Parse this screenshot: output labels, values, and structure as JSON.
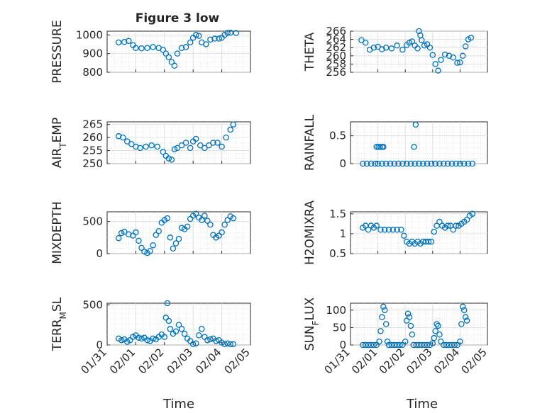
{
  "figure": {
    "title": "Figure 3 low",
    "xlabel": "Time",
    "x_ticks": [
      "01/31",
      "02/01",
      "02/02",
      "02/03",
      "02/04",
      "02/05"
    ],
    "marker_color": "#0072bd"
  },
  "chart_data": [
    {
      "type": "scatter",
      "ylabel": "PRESSURE",
      "ylim": [
        800,
        1020
      ],
      "yticks": [
        800,
        900,
        1000
      ],
      "ytick_labels": [
        "800",
        "900",
        "1000"
      ],
      "xlim": [
        0,
        5
      ],
      "grid": true,
      "x": [
        0.4,
        0.6,
        0.75,
        0.9,
        1.0,
        1.2,
        1.4,
        1.6,
        1.8,
        1.95,
        2.05,
        2.15,
        2.25,
        2.35,
        2.45,
        2.6,
        2.75,
        2.9,
        3.0,
        3.1,
        3.2,
        3.3,
        3.45,
        3.6,
        3.75,
        3.9,
        4.0,
        4.1,
        4.2,
        4.3,
        4.5
      ],
      "y": [
        960,
        962,
        968,
        945,
        930,
        928,
        930,
        935,
        930,
        920,
        900,
        880,
        855,
        835,
        900,
        930,
        935,
        960,
        985,
        1000,
        995,
        960,
        950,
        975,
        980,
        980,
        985,
        1000,
        1010,
        1012,
        1010
      ]
    },
    {
      "type": "scatter",
      "ylabel": "THETA",
      "ylim": [
        256,
        266
      ],
      "yticks": [
        256,
        258,
        260,
        262,
        264,
        266
      ],
      "ytick_labels": [
        "256",
        "258",
        "260",
        "262",
        "264",
        "266"
      ],
      "xlim": [
        0,
        5
      ],
      "grid": true,
      "x": [
        0.4,
        0.55,
        0.7,
        0.85,
        1.0,
        1.15,
        1.3,
        1.5,
        1.7,
        1.9,
        2.05,
        2.15,
        2.25,
        2.35,
        2.45,
        2.5,
        2.55,
        2.6,
        2.7,
        2.8,
        2.9,
        3.0,
        3.1,
        3.2,
        3.3,
        3.45,
        3.6,
        3.75,
        3.9,
        4.0,
        4.1,
        4.2,
        4.3,
        4.4
      ],
      "y": [
        263.8,
        263.2,
        261.5,
        262,
        262.2,
        261.6,
        262,
        261.8,
        262.5,
        261.5,
        262.6,
        263.2,
        263.5,
        262.5,
        261.8,
        266,
        265,
        263.8,
        262.5,
        262.8,
        262,
        260.2,
        258,
        256.4,
        259,
        260.3,
        260,
        259.6,
        258.3,
        258.4,
        260,
        262.3,
        264,
        264.4
      ]
    },
    {
      "type": "scatter",
      "ylabel": "AIR_TEMP",
      "ylim": [
        250,
        266
      ],
      "yticks": [
        250,
        255,
        260,
        265
      ],
      "ytick_labels": [
        "250",
        "255",
        "260",
        "265"
      ],
      "xlim": [
        0,
        5
      ],
      "grid": true,
      "x": [
        0.4,
        0.55,
        0.7,
        0.85,
        1.0,
        1.15,
        1.35,
        1.55,
        1.75,
        1.95,
        2.05,
        2.15,
        2.25,
        2.35,
        2.45,
        2.6,
        2.75,
        2.9,
        3.0,
        3.1,
        3.25,
        3.4,
        3.55,
        3.7,
        3.85,
        4.0,
        4.15,
        4.3,
        4.4
      ],
      "y": [
        260.5,
        260,
        258.5,
        257.5,
        256.5,
        256,
        256.5,
        257,
        256.5,
        254.5,
        253,
        252,
        251.5,
        255.5,
        256,
        257,
        258,
        256,
        258.5,
        259.5,
        257,
        256,
        257,
        258,
        258,
        256.5,
        260,
        263,
        265
      ]
    },
    {
      "type": "scatter",
      "ylabel": "RAINFALL",
      "ylim": [
        0,
        0.75
      ],
      "yticks": [
        0,
        0.5
      ],
      "ytick_labels": [
        "0",
        "0.5"
      ],
      "xlim": [
        0,
        5
      ],
      "grid": true,
      "x": [
        0.45,
        0.6,
        0.75,
        0.9,
        1.0,
        1.15,
        1.3,
        1.45,
        1.6,
        1.75,
        1.9,
        2.05,
        2.2,
        2.35,
        2.5,
        2.65,
        2.8,
        2.95,
        3.1,
        3.25,
        3.4,
        3.55,
        3.7,
        3.85,
        4.0,
        4.15,
        4.3,
        4.45,
        0.95,
        1.02,
        1.08,
        1.15,
        1.2,
        2.32,
        2.38
      ],
      "y": [
        0,
        0,
        0,
        0,
        0,
        0,
        0,
        0,
        0,
        0,
        0,
        0,
        0,
        0,
        0,
        0,
        0,
        0,
        0,
        0,
        0,
        0,
        0,
        0,
        0,
        0,
        0,
        0,
        0.3,
        0.3,
        0.3,
        0.3,
        0.3,
        0.3,
        0.7
      ]
    },
    {
      "type": "scatter",
      "ylabel": "MIXDEPTH",
      "ylim": [
        0,
        650
      ],
      "yticks": [
        0,
        500
      ],
      "ytick_labels": [
        "0",
        "500"
      ],
      "xlim": [
        0,
        5
      ],
      "grid": true,
      "x": [
        0.4,
        0.5,
        0.6,
        0.75,
        0.9,
        1.0,
        1.1,
        1.2,
        1.3,
        1.4,
        1.5,
        1.6,
        1.7,
        1.8,
        1.9,
        2.0,
        2.1,
        2.2,
        2.3,
        2.4,
        2.5,
        2.6,
        2.7,
        2.8,
        2.9,
        3.0,
        3.1,
        3.2,
        3.3,
        3.4,
        3.5,
        3.6,
        3.7,
        3.8,
        3.9,
        4.0,
        4.1,
        4.2,
        4.3,
        4.4
      ],
      "y": [
        240,
        320,
        340,
        300,
        280,
        330,
        200,
        90,
        30,
        10,
        40,
        130,
        290,
        350,
        480,
        520,
        550,
        250,
        80,
        160,
        230,
        400,
        380,
        420,
        540,
        590,
        620,
        560,
        520,
        590,
        510,
        450,
        290,
        250,
        280,
        330,
        450,
        520,
        580,
        550
      ]
    },
    {
      "type": "scatter",
      "ylabel": "H2OMIXRA",
      "ylim": [
        0.5,
        1.55
      ],
      "yticks": [
        0.5,
        1,
        1.5
      ],
      "ytick_labels": [
        "0.5",
        "1",
        "1.5"
      ],
      "xlim": [
        0,
        5
      ],
      "grid": true,
      "x": [
        0.45,
        0.55,
        0.65,
        0.75,
        0.85,
        0.95,
        1.1,
        1.25,
        1.4,
        1.55,
        1.7,
        1.85,
        1.95,
        2.05,
        2.15,
        2.25,
        2.35,
        2.45,
        2.55,
        2.65,
        2.75,
        2.85,
        2.95,
        3.05,
        3.15,
        3.25,
        3.35,
        3.45,
        3.55,
        3.65,
        3.75,
        3.85,
        3.95,
        4.05,
        4.15,
        4.25,
        4.35,
        4.45
      ],
      "y": [
        1.15,
        1.2,
        1.1,
        1.2,
        1.15,
        1.2,
        1.1,
        1.1,
        1.1,
        1.1,
        1.1,
        1.1,
        0.95,
        0.8,
        0.75,
        0.8,
        0.75,
        0.8,
        0.75,
        0.8,
        0.8,
        0.8,
        0.8,
        1.05,
        1.2,
        1.3,
        1.2,
        1.15,
        1.2,
        1.2,
        1.1,
        1.2,
        1.2,
        1.25,
        1.3,
        1.35,
        1.45,
        1.5
      ]
    },
    {
      "type": "scatter",
      "ylabel": "TERR_MSL",
      "ylim": [
        0,
        520
      ],
      "yticks": [
        0,
        500
      ],
      "ytick_labels": [
        "0",
        "500"
      ],
      "xlim": [
        0,
        5
      ],
      "grid": true,
      "x": [
        0.4,
        0.5,
        0.6,
        0.7,
        0.8,
        0.9,
        1.0,
        1.1,
        1.2,
        1.3,
        1.4,
        1.5,
        1.6,
        1.7,
        1.8,
        1.9,
        2.0,
        2.05,
        2.1,
        2.15,
        2.2,
        2.3,
        2.4,
        2.5,
        2.6,
        2.7,
        2.8,
        2.9,
        3.0,
        3.1,
        3.2,
        3.3,
        3.4,
        3.5,
        3.6,
        3.7,
        3.8,
        3.9,
        4.0,
        4.1,
        4.2,
        4.3,
        4.4
      ],
      "y": [
        80,
        60,
        70,
        40,
        60,
        100,
        120,
        90,
        80,
        90,
        60,
        50,
        80,
        70,
        100,
        130,
        100,
        340,
        520,
        300,
        200,
        140,
        170,
        250,
        200,
        140,
        80,
        50,
        10,
        20,
        120,
        200,
        100,
        60,
        70,
        80,
        50,
        60,
        30,
        10,
        20,
        10,
        10
      ]
    },
    {
      "type": "scatter",
      "ylabel": "SUN_FLUX",
      "ylim": [
        0,
        120
      ],
      "yticks": [
        0,
        50,
        100
      ],
      "ytick_labels": [
        "0",
        "50",
        "100"
      ],
      "xlim": [
        0,
        5
      ],
      "grid": true,
      "x": [
        0.45,
        0.55,
        0.65,
        0.75,
        0.85,
        0.95,
        1.05,
        1.1,
        1.15,
        1.2,
        1.25,
        1.3,
        1.35,
        1.4,
        1.5,
        1.6,
        1.7,
        1.8,
        1.9,
        2.0,
        2.05,
        2.1,
        2.15,
        2.2,
        2.25,
        2.3,
        2.4,
        2.5,
        2.6,
        2.7,
        2.8,
        2.9,
        3.0,
        3.05,
        3.1,
        3.15,
        3.2,
        3.25,
        3.3,
        3.4,
        3.5,
        3.6,
        3.7,
        3.8,
        3.9,
        4.0,
        4.05,
        4.1,
        4.15,
        4.2,
        4.25
      ],
      "y": [
        0,
        0,
        0,
        0,
        0,
        0,
        10,
        40,
        80,
        110,
        100,
        60,
        10,
        0,
        0,
        0,
        0,
        0,
        0,
        10,
        70,
        90,
        80,
        55,
        30,
        0,
        0,
        0,
        0,
        0,
        0,
        0,
        5,
        20,
        40,
        60,
        55,
        30,
        10,
        0,
        0,
        0,
        0,
        0,
        0,
        10,
        60,
        110,
        100,
        80,
        70
      ]
    }
  ]
}
